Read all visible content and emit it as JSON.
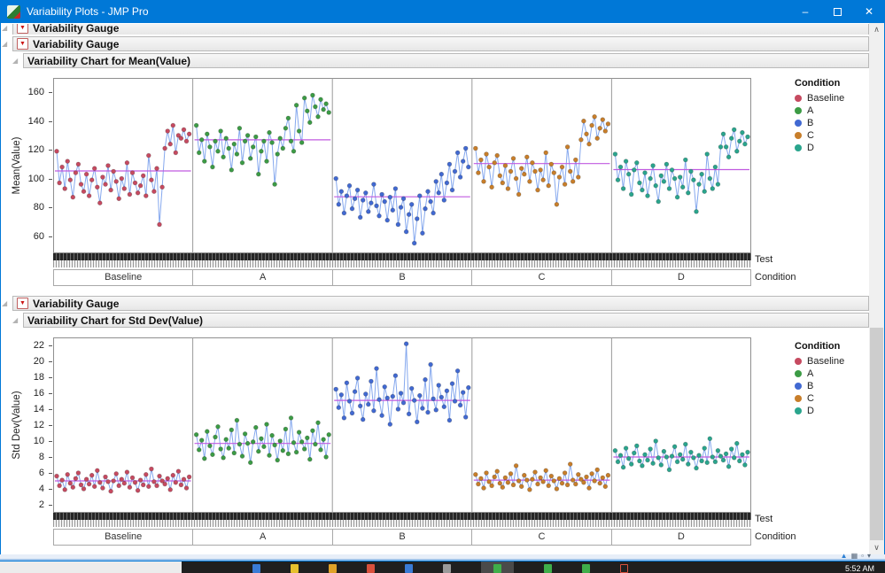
{
  "window": {
    "title": "Variability Plots - JMP Pro"
  },
  "icons": {
    "disclosure": "◢",
    "red_triangle": "▼",
    "minimize": "–",
    "close": "✕",
    "scroll_up": "∧",
    "scroll_down": "∨",
    "corner_chart": "▲",
    "corner_grid": "▦",
    "corner_window": "▫",
    "corner_dropdown": "▾"
  },
  "outline": {
    "clipped_section_label": "Variability Gauge",
    "sections": [
      {
        "label": "Variability Gauge",
        "chart_title": "Variability Chart for Mean(Value)"
      },
      {
        "label": "Variability Gauge",
        "chart_title": "Variability Chart for Std Dev(Value)"
      }
    ]
  },
  "legend": {
    "title": "Condition",
    "items": [
      {
        "label": "Baseline",
        "color": "#c64a60"
      },
      {
        "label": "A",
        "color": "#3c9b45"
      },
      {
        "label": "B",
        "color": "#4169d2"
      },
      {
        "label": "C",
        "color": "#c87e2a"
      },
      {
        "label": "D",
        "color": "#2aa58d"
      }
    ]
  },
  "colors": {
    "titlebar": "#0078d7",
    "connector": "#85a8ee",
    "mean_line": "#c05ae0",
    "panel_border": "#8f8f8f"
  },
  "taskbar": {
    "time": "5:52 AM",
    "icons": [
      {
        "color": "#3a7bd5"
      },
      {
        "color": "#e6c02e"
      },
      {
        "color": "#e0a228"
      },
      {
        "color": "#d9503c"
      },
      {
        "color": "#3a7bd5"
      },
      {
        "color": "#9a9a9a"
      },
      {
        "color": "#3fae4a",
        "highlighted": true
      },
      {
        "color": "#3fae4a"
      },
      {
        "color": "#3fae4a"
      },
      {
        "color": "#d9503c",
        "outline": true
      }
    ]
  },
  "chart_data": [
    {
      "type": "line",
      "subtype": "variability-chart",
      "title": "Variability Chart for Mean(Value)",
      "ylabel": "Mean(Value)",
      "categories": [
        "Baseline",
        "A",
        "B",
        "C",
        "D"
      ],
      "x_axis_row_labels": [
        "Test",
        "Condition"
      ],
      "ylim": [
        48,
        170
      ],
      "yticks": [
        60,
        80,
        100,
        120,
        140,
        160
      ],
      "grid": false,
      "legend_position": "right",
      "group_means": [
        105.3,
        126.9,
        87.3,
        110.4,
        106.2
      ],
      "series": [
        {
          "name": "Baseline",
          "color": "#c64a60",
          "values": [
            119,
            97,
            108,
            93,
            112,
            99,
            87,
            104,
            110,
            96,
            91,
            103,
            88,
            99,
            107,
            94,
            83,
            101,
            96,
            109,
            92,
            105,
            98,
            86,
            100,
            93,
            111,
            89,
            104,
            97,
            90,
            95,
            102,
            88,
            116,
            99,
            91,
            107,
            68,
            94,
            121,
            133,
            124,
            137,
            118,
            130,
            128,
            134,
            126,
            131
          ]
        },
        {
          "name": "A",
          "color": "#3c9b45",
          "values": [
            137,
            118,
            127,
            112,
            131,
            122,
            108,
            126,
            119,
            133,
            115,
            128,
            121,
            106,
            124,
            117,
            135,
            111,
            126,
            130,
            114,
            122,
            129,
            103,
            119,
            126,
            112,
            132,
            125,
            96,
            117,
            128,
            121,
            135,
            142,
            126,
            119,
            151,
            133,
            125,
            156,
            147,
            139,
            158,
            150,
            143,
            155,
            148,
            152,
            146
          ]
        },
        {
          "name": "B",
          "color": "#4169d2",
          "values": [
            100,
            82,
            91,
            76,
            88,
            95,
            79,
            86,
            92,
            73,
            85,
            90,
            77,
            83,
            96,
            81,
            74,
            89,
            84,
            71,
            87,
            78,
            93,
            68,
            80,
            86,
            63,
            75,
            82,
            55,
            72,
            88,
            62,
            79,
            91,
            84,
            76,
            98,
            90,
            103,
            85,
            97,
            110,
            92,
            105,
            118,
            101,
            112,
            121,
            108
          ]
        },
        {
          "name": "C",
          "color": "#c87e2a",
          "values": [
            121,
            104,
            113,
            98,
            117,
            108,
            94,
            111,
            116,
            102,
            97,
            109,
            93,
            105,
            114,
            100,
            89,
            107,
            103,
            115,
            98,
            111,
            105,
            92,
            106,
            99,
            118,
            95,
            110,
            104,
            82,
            101,
            108,
            96,
            122,
            105,
            98,
            113,
            101,
            127,
            140,
            131,
            124,
            137,
            143,
            128,
            135,
            141,
            133,
            138
          ]
        },
        {
          "name": "D",
          "color": "#2aa58d",
          "values": [
            117,
            99,
            108,
            93,
            112,
            103,
            89,
            106,
            111,
            97,
            92,
            104,
            88,
            100,
            109,
            95,
            84,
            102,
            98,
            110,
            93,
            106,
            100,
            87,
            101,
            94,
            113,
            90,
            105,
            99,
            77,
            96,
            103,
            91,
            117,
            100,
            93,
            108,
            96,
            122,
            131,
            122,
            115,
            128,
            134,
            119,
            126,
            132,
            124,
            129
          ]
        }
      ]
    },
    {
      "type": "line",
      "subtype": "variability-chart",
      "title": "Variability Chart for Std Dev(Value)",
      "ylabel": "Std Dev(Value)",
      "categories": [
        "Baseline",
        "A",
        "B",
        "C",
        "D"
      ],
      "x_axis_row_labels": [
        "Test",
        "Condition"
      ],
      "ylim": [
        1,
        23
      ],
      "yticks": [
        2,
        4,
        6,
        8,
        10,
        12,
        14,
        16,
        18,
        20,
        22
      ],
      "grid": false,
      "legend_position": "right",
      "group_means": [
        5.0,
        9.7,
        15.1,
        5.1,
        8.0
      ],
      "series": [
        {
          "name": "Baseline",
          "color": "#c64a60",
          "values": [
            5.6,
            4.4,
            5.1,
            3.9,
            5.8,
            4.7,
            4.2,
            5.3,
            6.0,
            4.5,
            4.0,
            5.2,
            4.6,
            5.7,
            4.3,
            6.3,
            4.8,
            4.1,
            5.5,
            4.9,
            3.7,
            5.0,
            5.9,
            4.4,
            5.2,
            4.7,
            6.1,
            4.2,
            5.4,
            4.8,
            3.8,
            5.1,
            4.5,
            5.8,
            4.3,
            6.5,
            4.9,
            4.4,
            5.6,
            5.0,
            4.6,
            5.3,
            3.9,
            5.7,
            4.8,
            6.2,
            4.5,
            5.2,
            4.1,
            5.5
          ]
        },
        {
          "name": "A",
          "color": "#3c9b45",
          "values": [
            10.8,
            8.9,
            10.1,
            7.8,
            11.2,
            9.4,
            8.3,
            10.5,
            11.8,
            9.0,
            7.9,
            10.2,
            9.1,
            11.4,
            8.5,
            12.6,
            9.6,
            8.1,
            10.9,
            9.7,
            7.3,
            9.9,
            11.7,
            8.7,
            10.3,
            9.3,
            12.1,
            8.2,
            10.7,
            9.5,
            7.6,
            10.0,
            8.8,
            11.5,
            8.4,
            12.9,
            9.8,
            8.6,
            11.1,
            9.9,
            9.0,
            10.4,
            7.7,
            11.3,
            9.6,
            12.3,
            8.9,
            10.2,
            8.0,
            10.8
          ]
        },
        {
          "name": "B",
          "color": "#4169d2",
          "values": [
            16.5,
            14.2,
            15.8,
            12.9,
            17.3,
            15.0,
            13.5,
            16.2,
            17.9,
            14.4,
            12.7,
            15.9,
            14.6,
            17.5,
            13.8,
            19.1,
            15.2,
            13.2,
            16.8,
            15.4,
            12.1,
            15.6,
            18.2,
            14.0,
            16.0,
            14.8,
            22.2,
            13.4,
            16.6,
            15.1,
            12.4,
            15.7,
            14.1,
            17.7,
            13.6,
            19.6,
            15.3,
            13.9,
            17.0,
            15.5,
            14.3,
            16.3,
            12.6,
            17.2,
            15.0,
            18.8,
            14.5,
            16.1,
            13.0,
            16.7
          ]
        },
        {
          "name": "C",
          "color": "#c87e2a",
          "values": [
            5.8,
            4.6,
            5.3,
            4.1,
            6.0,
            4.9,
            4.4,
            5.5,
            6.2,
            4.7,
            4.2,
            5.4,
            4.8,
            5.9,
            4.5,
            6.9,
            5.0,
            4.3,
            5.7,
            5.1,
            3.9,
            5.2,
            6.1,
            4.6,
            5.4,
            4.9,
            6.3,
            4.4,
            5.6,
            5.0,
            4.0,
            5.3,
            4.7,
            6.0,
            4.5,
            7.1,
            5.1,
            4.6,
            5.8,
            5.2,
            4.8,
            5.5,
            4.1,
            5.9,
            5.0,
            6.4,
            4.7,
            5.4,
            4.3,
            5.7
          ]
        },
        {
          "name": "D",
          "color": "#2aa58d",
          "values": [
            8.8,
            7.4,
            8.2,
            6.7,
            9.1,
            7.8,
            7.1,
            8.5,
            9.4,
            7.5,
            6.9,
            8.3,
            7.6,
            9.0,
            7.2,
            10.0,
            7.9,
            7.0,
            8.7,
            8.0,
            6.4,
            8.1,
            9.3,
            7.4,
            8.3,
            7.7,
            9.6,
            7.1,
            8.6,
            7.9,
            6.6,
            8.2,
            7.5,
            9.1,
            7.3,
            10.3,
            8.0,
            7.4,
            8.8,
            8.1,
            7.6,
            8.4,
            6.8,
            9.0,
            7.9,
            9.7,
            7.5,
            8.3,
            7.0,
            8.6
          ]
        }
      ]
    }
  ]
}
